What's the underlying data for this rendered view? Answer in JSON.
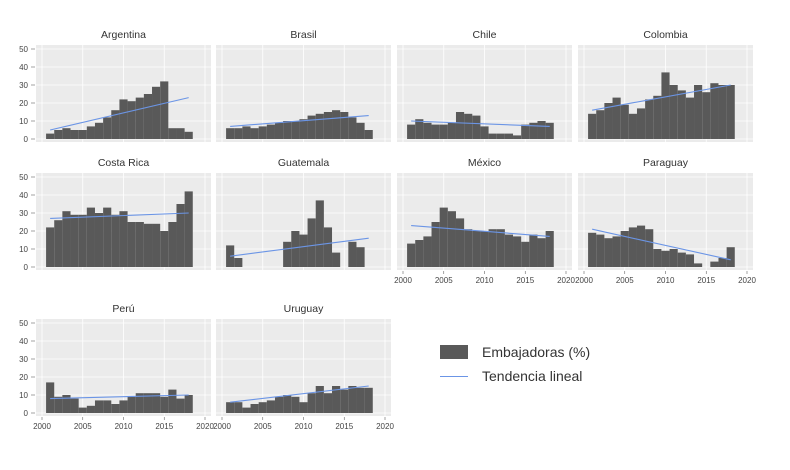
{
  "chart_data": {
    "type": "bar",
    "facet_layout": "4 columns x 3 rows",
    "x_axis": {
      "range": [
        2000,
        2020
      ],
      "ticks": [
        2000,
        2005,
        2010,
        2015,
        2020
      ]
    },
    "y_axis": {
      "range": [
        0,
        50
      ],
      "ticks": [
        0,
        10,
        20,
        30,
        40,
        50
      ]
    },
    "grid": true,
    "legend": {
      "position": "bottom-right",
      "items": [
        {
          "label": "Embajadoras (%)",
          "kind": "bar"
        },
        {
          "label": "Tendencia lineal",
          "kind": "line"
        }
      ]
    },
    "colors": {
      "bar": "#595959",
      "trend": "#6b95e6",
      "panel_bg": "#ebebeb",
      "grid": "#ffffff"
    },
    "panels": [
      {
        "title": "Argentina",
        "years": [
          2001,
          2002,
          2003,
          2004,
          2005,
          2006,
          2007,
          2008,
          2009,
          2010,
          2011,
          2012,
          2013,
          2014,
          2015,
          2016,
          2017,
          2018
        ],
        "values": [
          3,
          5,
          6,
          5,
          5,
          7,
          9,
          12,
          16,
          22,
          21,
          23,
          25,
          29,
          32,
          6,
          6,
          4
        ],
        "trend": [
          [
            2001,
            5
          ],
          [
            2018,
            23
          ]
        ]
      },
      {
        "title": "Brasil",
        "years": [
          2001,
          2002,
          2003,
          2004,
          2005,
          2006,
          2007,
          2008,
          2009,
          2010,
          2011,
          2012,
          2013,
          2014,
          2015,
          2016,
          2017,
          2018
        ],
        "values": [
          6,
          6,
          7,
          6,
          7,
          8,
          9,
          10,
          10,
          11,
          13,
          14,
          15,
          16,
          15,
          12,
          9,
          5
        ],
        "trend": [
          [
            2001,
            7
          ],
          [
            2018,
            13
          ]
        ]
      },
      {
        "title": "Chile",
        "years": [
          2001,
          2002,
          2003,
          2004,
          2005,
          2006,
          2007,
          2008,
          2009,
          2010,
          2011,
          2012,
          2013,
          2014,
          2015,
          2016,
          2017,
          2018
        ],
        "values": [
          8,
          11,
          9,
          8,
          8,
          9,
          15,
          14,
          13,
          7,
          3,
          3,
          3,
          2,
          8,
          9,
          10,
          9
        ],
        "trend": [
          [
            2001,
            10
          ],
          [
            2018,
            7
          ]
        ]
      },
      {
        "title": "Colombia",
        "years": [
          2001,
          2002,
          2003,
          2004,
          2005,
          2006,
          2007,
          2008,
          2009,
          2010,
          2011,
          2012,
          2013,
          2014,
          2015,
          2016,
          2017,
          2018
        ],
        "values": [
          14,
          16,
          20,
          23,
          19,
          14,
          17,
          22,
          24,
          37,
          30,
          27,
          23,
          30,
          26,
          31,
          30,
          30
        ],
        "trend": [
          [
            2001,
            16
          ],
          [
            2018,
            30
          ]
        ]
      },
      {
        "title": "Costa Rica",
        "years": [
          2001,
          2002,
          2003,
          2004,
          2005,
          2006,
          2007,
          2008,
          2009,
          2010,
          2011,
          2012,
          2013,
          2014,
          2015,
          2016,
          2017,
          2018
        ],
        "values": [
          22,
          26,
          31,
          29,
          29,
          33,
          30,
          33,
          29,
          31,
          25,
          25,
          24,
          24,
          20,
          25,
          35,
          42
        ],
        "trend": [
          [
            2001,
            27
          ],
          [
            2018,
            30
          ]
        ]
      },
      {
        "title": "Guatemala",
        "years": [
          2001,
          2002,
          2003,
          2004,
          2005,
          2006,
          2007,
          2008,
          2009,
          2010,
          2011,
          2012,
          2013,
          2014,
          2015,
          2016,
          2017,
          2018
        ],
        "values": [
          12,
          5,
          null,
          null,
          null,
          null,
          null,
          14,
          20,
          18,
          27,
          37,
          22,
          8,
          null,
          14,
          11,
          null
        ],
        "trend": [
          [
            2001,
            6
          ],
          [
            2018,
            16
          ]
        ]
      },
      {
        "title": "México",
        "years": [
          2001,
          2002,
          2003,
          2004,
          2005,
          2006,
          2007,
          2008,
          2009,
          2010,
          2011,
          2012,
          2013,
          2014,
          2015,
          2016,
          2017,
          2018
        ],
        "values": [
          13,
          15,
          17,
          25,
          33,
          31,
          27,
          21,
          20,
          20,
          21,
          21,
          18,
          17,
          14,
          18,
          16,
          20
        ],
        "trend": [
          [
            2001,
            23
          ],
          [
            2018,
            17
          ]
        ]
      },
      {
        "title": "Paraguay",
        "years": [
          2001,
          2002,
          2003,
          2004,
          2005,
          2006,
          2007,
          2008,
          2009,
          2010,
          2011,
          2012,
          2013,
          2014,
          2015,
          2016,
          2017,
          2018
        ],
        "values": [
          19,
          18,
          16,
          17,
          20,
          22,
          23,
          21,
          10,
          9,
          10,
          8,
          7,
          2,
          null,
          3,
          5,
          11
        ],
        "trend": [
          [
            2001,
            21
          ],
          [
            2018,
            4
          ]
        ]
      },
      {
        "title": "Perú",
        "years": [
          2001,
          2002,
          2003,
          2004,
          2005,
          2006,
          2007,
          2008,
          2009,
          2010,
          2011,
          2012,
          2013,
          2014,
          2015,
          2016,
          2017,
          2018
        ],
        "values": [
          17,
          9,
          10,
          8,
          3,
          4,
          7,
          7,
          5,
          7,
          9,
          11,
          11,
          11,
          9,
          13,
          8,
          10
        ],
        "trend": [
          [
            2001,
            8
          ],
          [
            2018,
            10
          ]
        ]
      },
      {
        "title": "Uruguay",
        "years": [
          2001,
          2002,
          2003,
          2004,
          2005,
          2006,
          2007,
          2008,
          2009,
          2010,
          2011,
          2012,
          2013,
          2014,
          2015,
          2016,
          2017,
          2018
        ],
        "values": [
          6,
          6,
          3,
          5,
          6,
          7,
          9,
          10,
          9,
          6,
          11,
          15,
          11,
          15,
          13,
          15,
          14,
          14
        ],
        "trend": [
          [
            2001,
            6
          ],
          [
            2018,
            15
          ]
        ]
      }
    ]
  }
}
